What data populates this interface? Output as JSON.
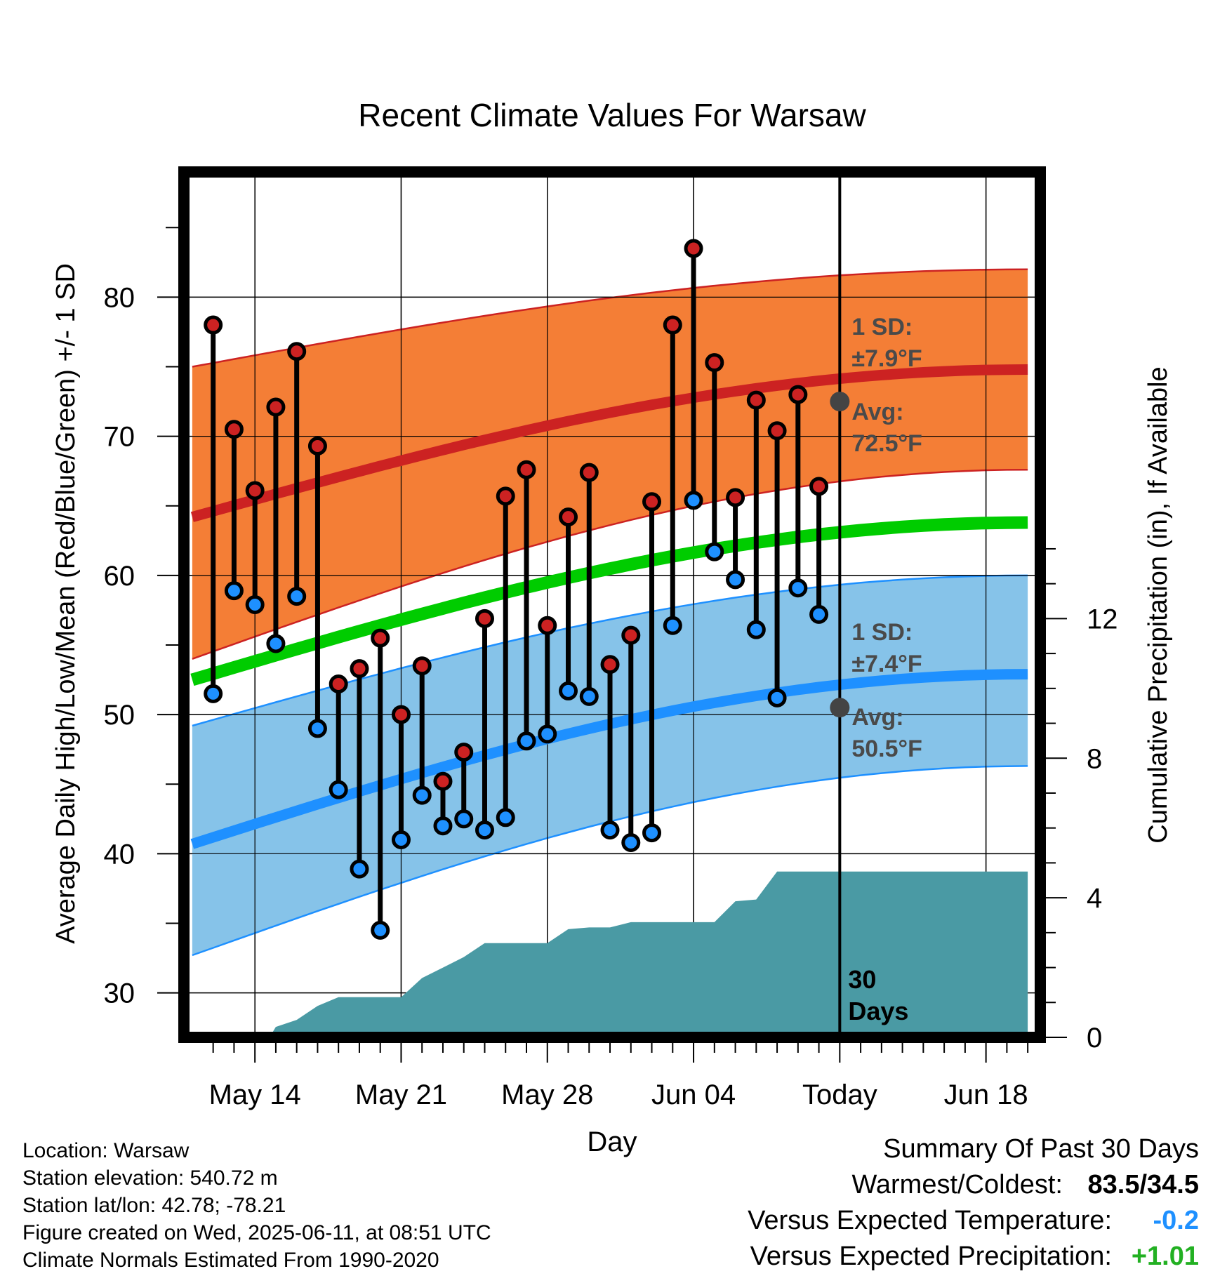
{
  "chart_data": {
    "type": "line",
    "title": "Recent Climate Values For Warsaw",
    "xlabel": "Day",
    "ylabel": "Average Daily High/Low/Mean (Red/Blue/Green) +/- 1 SD",
    "y2label": "Cumulative Precipitation (in), If Available",
    "x_tick_labels": [
      "May 14",
      "May 21",
      "May 28",
      "Jun 04",
      "Today",
      "Jun 18"
    ],
    "y_ticks": [
      30,
      40,
      50,
      60,
      70,
      80
    ],
    "y2_ticks": [
      0,
      4,
      8,
      12
    ],
    "ylim": [
      26.8,
      89
    ],
    "y2lim": [
      0,
      24.8
    ],
    "xlim_day_of_month_may": [
      10.6,
      51.6
    ],
    "today_day_of_month_may": 42,
    "colors": {
      "high": "#cc2222",
      "low": "#1e90ff",
      "mean": "#00cc00",
      "high_band": "#f47a30",
      "low_band": "#82c1e8",
      "precip": "#4a9aa4"
    },
    "normal_high": {
      "x": [
        11,
        51
      ],
      "start": 64.2,
      "end": 74.8
    },
    "normal_high_band": {
      "upper_start": 75,
      "upper_end": 82,
      "lower_start": 54,
      "lower_end": 67.6
    },
    "normal_mean": {
      "x": [
        11,
        51
      ],
      "start": 52.5,
      "end": 63.8
    },
    "normal_low": {
      "x": [
        11,
        51
      ],
      "start": 40.7,
      "end": 52.9
    },
    "normal_low_band": {
      "upper_start": 49.2,
      "upper_end": 60,
      "lower_start": 32.7,
      "lower_end": 46.3
    },
    "daily": {
      "dates": [
        "May 12",
        "May 13",
        "May 14",
        "May 15",
        "May 16",
        "May 17",
        "May 18",
        "May 19",
        "May 20",
        "May 21",
        "May 22",
        "May 23",
        "May 24",
        "May 25",
        "May 26",
        "May 27",
        "May 28",
        "May 29",
        "May 30",
        "May 31",
        "Jun 01",
        "Jun 02",
        "Jun 03",
        "Jun 04",
        "Jun 05",
        "Jun 06",
        "Jun 07",
        "Jun 08",
        "Jun 09",
        "Jun 10"
      ],
      "day_of_month_may": [
        12,
        13,
        14,
        15,
        16,
        17,
        18,
        19,
        20,
        21,
        22,
        23,
        24,
        25,
        26,
        27,
        28,
        29,
        30,
        31,
        32,
        33,
        34,
        35,
        36,
        37,
        38,
        39,
        40,
        41
      ],
      "high": [
        78,
        70.5,
        66.1,
        72.1,
        76.1,
        69.3,
        52.2,
        53.3,
        55.5,
        50,
        53.5,
        45.2,
        47.3,
        56.9,
        65.7,
        67.6,
        56.4,
        64.2,
        67.4,
        53.6,
        55.7,
        65.3,
        78,
        83.5,
        75.3,
        65.6,
        72.6,
        70.4,
        73,
        66.4
      ],
      "low": [
        51.5,
        58.9,
        57.9,
        55.1,
        58.5,
        49,
        44.6,
        38.9,
        34.5,
        41,
        44.2,
        42,
        42.5,
        41.7,
        42.6,
        48.1,
        48.6,
        51.7,
        51.3,
        41.7,
        40.8,
        41.5,
        56.4,
        65.4,
        61.7,
        59.7,
        56.1,
        51.2,
        59.1,
        57.2
      ]
    },
    "precip_cumulative": {
      "day_of_month_may": [
        11,
        11.3,
        12,
        13,
        14,
        14.7,
        15,
        16,
        17,
        18,
        19,
        20,
        21,
        22,
        23,
        24,
        25,
        26,
        27,
        28,
        29,
        30,
        31,
        32,
        33,
        34,
        35,
        36,
        37,
        38,
        39,
        40,
        41,
        42,
        51
      ],
      "values": [
        0,
        0,
        0,
        0,
        0,
        0,
        0.3,
        0.5,
        0.9,
        1.15,
        1.15,
        1.15,
        1.15,
        1.7,
        2,
        2.3,
        2.7,
        2.7,
        2.7,
        2.7,
        3.1,
        3.15,
        3.15,
        3.3,
        3.3,
        3.3,
        3.3,
        3.3,
        3.9,
        3.95,
        4.75,
        4.75,
        4.75,
        4.75,
        4.75
      ]
    },
    "annotations": {
      "high_sd_label": "1 SD:",
      "high_sd_value": "±7.9°F",
      "high_avg_label": "Avg:",
      "high_avg_value": "72.5°F",
      "high_avg_today": 72.5,
      "low_sd_label": "1 SD:",
      "low_sd_value": "±7.4°F",
      "low_avg_label": "Avg:",
      "low_avg_value": "50.5°F",
      "low_avg_today": 50.5,
      "window_count": "30",
      "window_unit": "Days"
    }
  },
  "footer": {
    "location": "Location: Warsaw",
    "elevation": "Station elevation: 540.72 m",
    "latlon": "Station lat/lon: 42.78; -78.21",
    "created": "Figure created on Wed, 2025-06-11, at 08:51 UTC",
    "normals": "Climate Normals Estimated From 1990-2020"
  },
  "summary": {
    "title": "Summary Of Past 30 Days",
    "warmest_coldest_label": "Warmest/Coldest:",
    "warmest_coldest_value": "83.5/34.5",
    "temp_label": "Versus Expected Temperature:",
    "temp_value": "-0.2",
    "precip_label": "Versus Expected Precipitation:",
    "precip_value": "+1.01"
  }
}
